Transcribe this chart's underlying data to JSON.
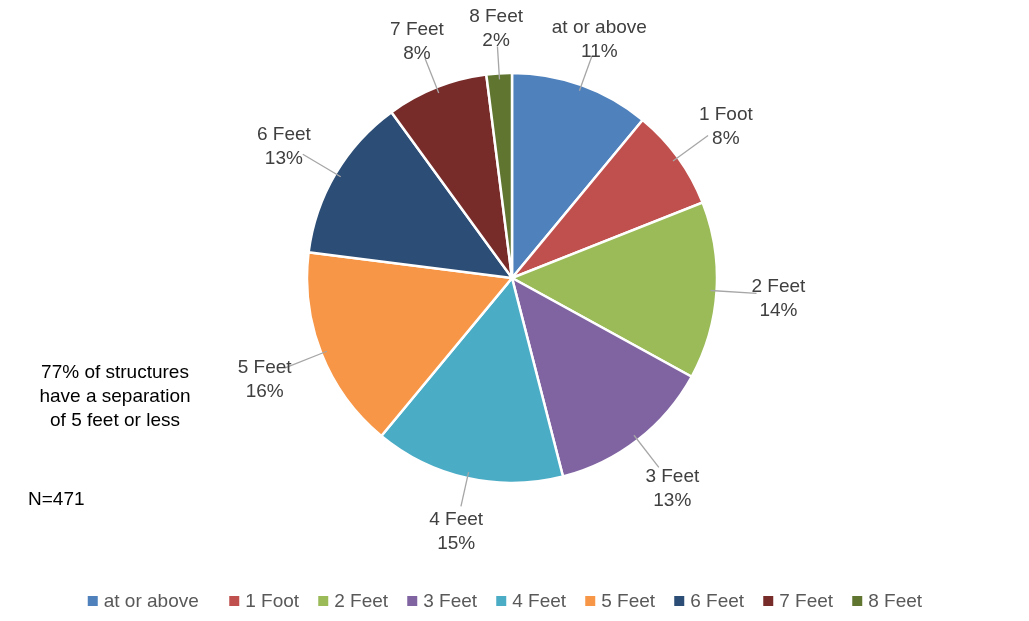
{
  "chart_data": {
    "type": "pie",
    "categories": [
      "at or above",
      "1 Foot",
      "2 Feet",
      "3 Feet",
      "4 Feet",
      "5 Feet",
      "6 Feet",
      "7 Feet",
      "8 Feet"
    ],
    "values": [
      11,
      8,
      14,
      13,
      15,
      16,
      13,
      8,
      2
    ],
    "value_labels": [
      "11%",
      "8%",
      "14%",
      "13%",
      "15%",
      "16%",
      "13%",
      "8%",
      "2%"
    ],
    "colors": [
      "#4f81bd",
      "#c0504d",
      "#9bbb59",
      "#8064a2",
      "#4bacc6",
      "#f79646",
      "#2c4d75",
      "#772c2a",
      "#5f7530"
    ],
    "legend": "bottom",
    "annotations": [
      "77% of structures have a separation of 5 feet or less",
      "N=471"
    ]
  }
}
